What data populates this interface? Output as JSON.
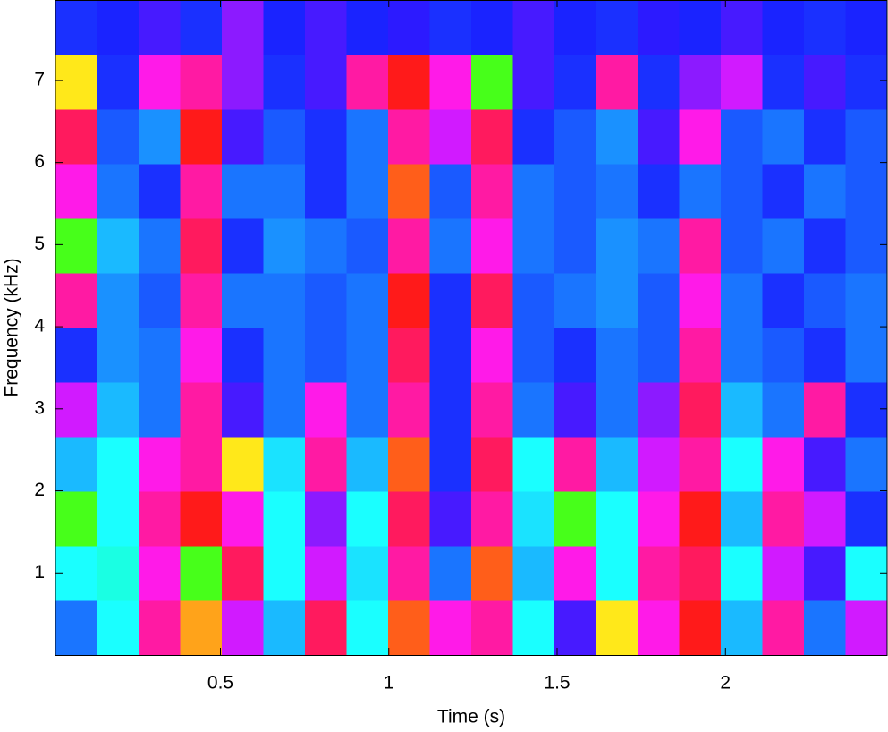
{
  "chart_data": {
    "type": "heatmap",
    "colormap": "hsv",
    "x_label": "Time (s)",
    "y_label": "Frequency (kHz)",
    "xlim": [
      0.01,
      2.48
    ],
    "ylim": [
      0,
      7.98
    ],
    "xticks": [
      0.5,
      1,
      1.5,
      2
    ],
    "yticks": [
      1,
      2,
      3,
      4,
      5,
      6,
      7
    ],
    "values": [
      [
        0.6,
        0.5,
        0.9,
        0.1,
        0.8,
        0.55,
        0.95,
        0.5,
        0.05,
        0.85,
        0.9,
        0.5,
        0.7,
        0.15,
        0.85,
        0.0,
        0.55,
        0.9,
        0.6,
        0.8
      ],
      [
        0.5,
        0.48,
        0.85,
        0.3,
        0.95,
        0.5,
        0.8,
        0.52,
        0.9,
        0.6,
        0.05,
        0.55,
        0.85,
        0.5,
        0.9,
        0.95,
        0.5,
        0.8,
        0.7,
        0.5
      ],
      [
        0.3,
        0.5,
        0.9,
        0.0,
        0.85,
        0.5,
        0.75,
        0.5,
        0.95,
        0.7,
        0.9,
        0.52,
        0.3,
        0.5,
        0.85,
        0.0,
        0.55,
        0.9,
        0.8,
        0.65
      ],
      [
        0.55,
        0.5,
        0.85,
        0.9,
        0.15,
        0.52,
        0.9,
        0.55,
        0.05,
        0.65,
        0.95,
        0.5,
        0.9,
        0.55,
        0.8,
        0.9,
        0.5,
        0.85,
        0.7,
        0.6
      ],
      [
        0.8,
        0.55,
        0.6,
        0.9,
        0.7,
        0.6,
        0.85,
        0.6,
        0.9,
        0.65,
        0.9,
        0.6,
        0.7,
        0.6,
        0.75,
        0.95,
        0.55,
        0.6,
        0.9,
        0.65
      ],
      [
        0.65,
        0.58,
        0.6,
        0.85,
        0.65,
        0.6,
        0.62,
        0.6,
        0.95,
        0.65,
        0.85,
        0.62,
        0.65,
        0.6,
        0.62,
        0.9,
        0.6,
        0.62,
        0.65,
        0.6
      ],
      [
        0.9,
        0.58,
        0.62,
        0.9,
        0.6,
        0.6,
        0.62,
        0.6,
        0.0,
        0.65,
        0.95,
        0.62,
        0.6,
        0.58,
        0.62,
        0.85,
        0.6,
        0.65,
        0.62,
        0.6
      ],
      [
        0.3,
        0.55,
        0.6,
        0.95,
        0.65,
        0.58,
        0.6,
        0.62,
        0.9,
        0.6,
        0.85,
        0.6,
        0.62,
        0.58,
        0.6,
        0.9,
        0.62,
        0.6,
        0.65,
        0.62
      ],
      [
        0.85,
        0.6,
        0.65,
        0.9,
        0.6,
        0.6,
        0.65,
        0.6,
        0.05,
        0.62,
        0.9,
        0.6,
        0.62,
        0.6,
        0.65,
        0.6,
        0.62,
        0.65,
        0.6,
        0.62
      ],
      [
        0.95,
        0.62,
        0.58,
        0.0,
        0.7,
        0.62,
        0.65,
        0.6,
        0.9,
        0.8,
        0.95,
        0.65,
        0.62,
        0.58,
        0.7,
        0.85,
        0.62,
        0.6,
        0.65,
        0.62
      ],
      [
        0.15,
        0.65,
        0.85,
        0.9,
        0.75,
        0.65,
        0.7,
        0.9,
        0.0,
        0.85,
        0.3,
        0.7,
        0.65,
        0.9,
        0.65,
        0.75,
        0.8,
        0.65,
        0.7,
        0.65
      ],
      [
        0.65,
        0.66,
        0.7,
        0.65,
        0.75,
        0.66,
        0.7,
        0.66,
        0.68,
        0.65,
        0.66,
        0.7,
        0.66,
        0.65,
        0.68,
        0.66,
        0.7,
        0.66,
        0.65,
        0.66
      ]
    ]
  }
}
